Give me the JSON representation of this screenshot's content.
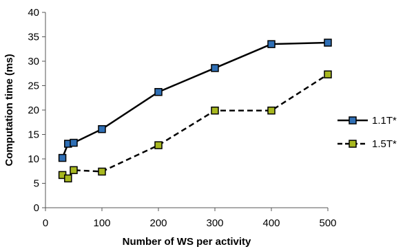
{
  "chart_data": {
    "type": "line",
    "xlabel": "Number of WS per activity",
    "ylabel": "Computation time (ms)",
    "xlim": [
      0,
      500
    ],
    "ylim": [
      0,
      40
    ],
    "xticks": [
      0,
      100,
      200,
      300,
      400,
      500
    ],
    "yticks": [
      0,
      5,
      10,
      15,
      20,
      25,
      30,
      35,
      40
    ],
    "grid": false,
    "legend_position": "right",
    "series": [
      {
        "name": "1.1T*",
        "line_style": "solid",
        "marker_fill": "#2f6fb5",
        "line_color": "#000000",
        "x": [
          30,
          40,
          50,
          100,
          200,
          300,
          400,
          500
        ],
        "y": [
          10.2,
          13.1,
          13.3,
          16.1,
          23.7,
          28.6,
          33.5,
          33.8
        ]
      },
      {
        "name": "1.5T*",
        "line_style": "dashed",
        "marker_fill": "#a8b820",
        "line_color": "#000000",
        "x": [
          30,
          40,
          50,
          100,
          200,
          300,
          400,
          500
        ],
        "y": [
          6.7,
          6.0,
          7.7,
          7.4,
          12.8,
          19.9,
          19.9,
          27.3
        ]
      }
    ]
  }
}
